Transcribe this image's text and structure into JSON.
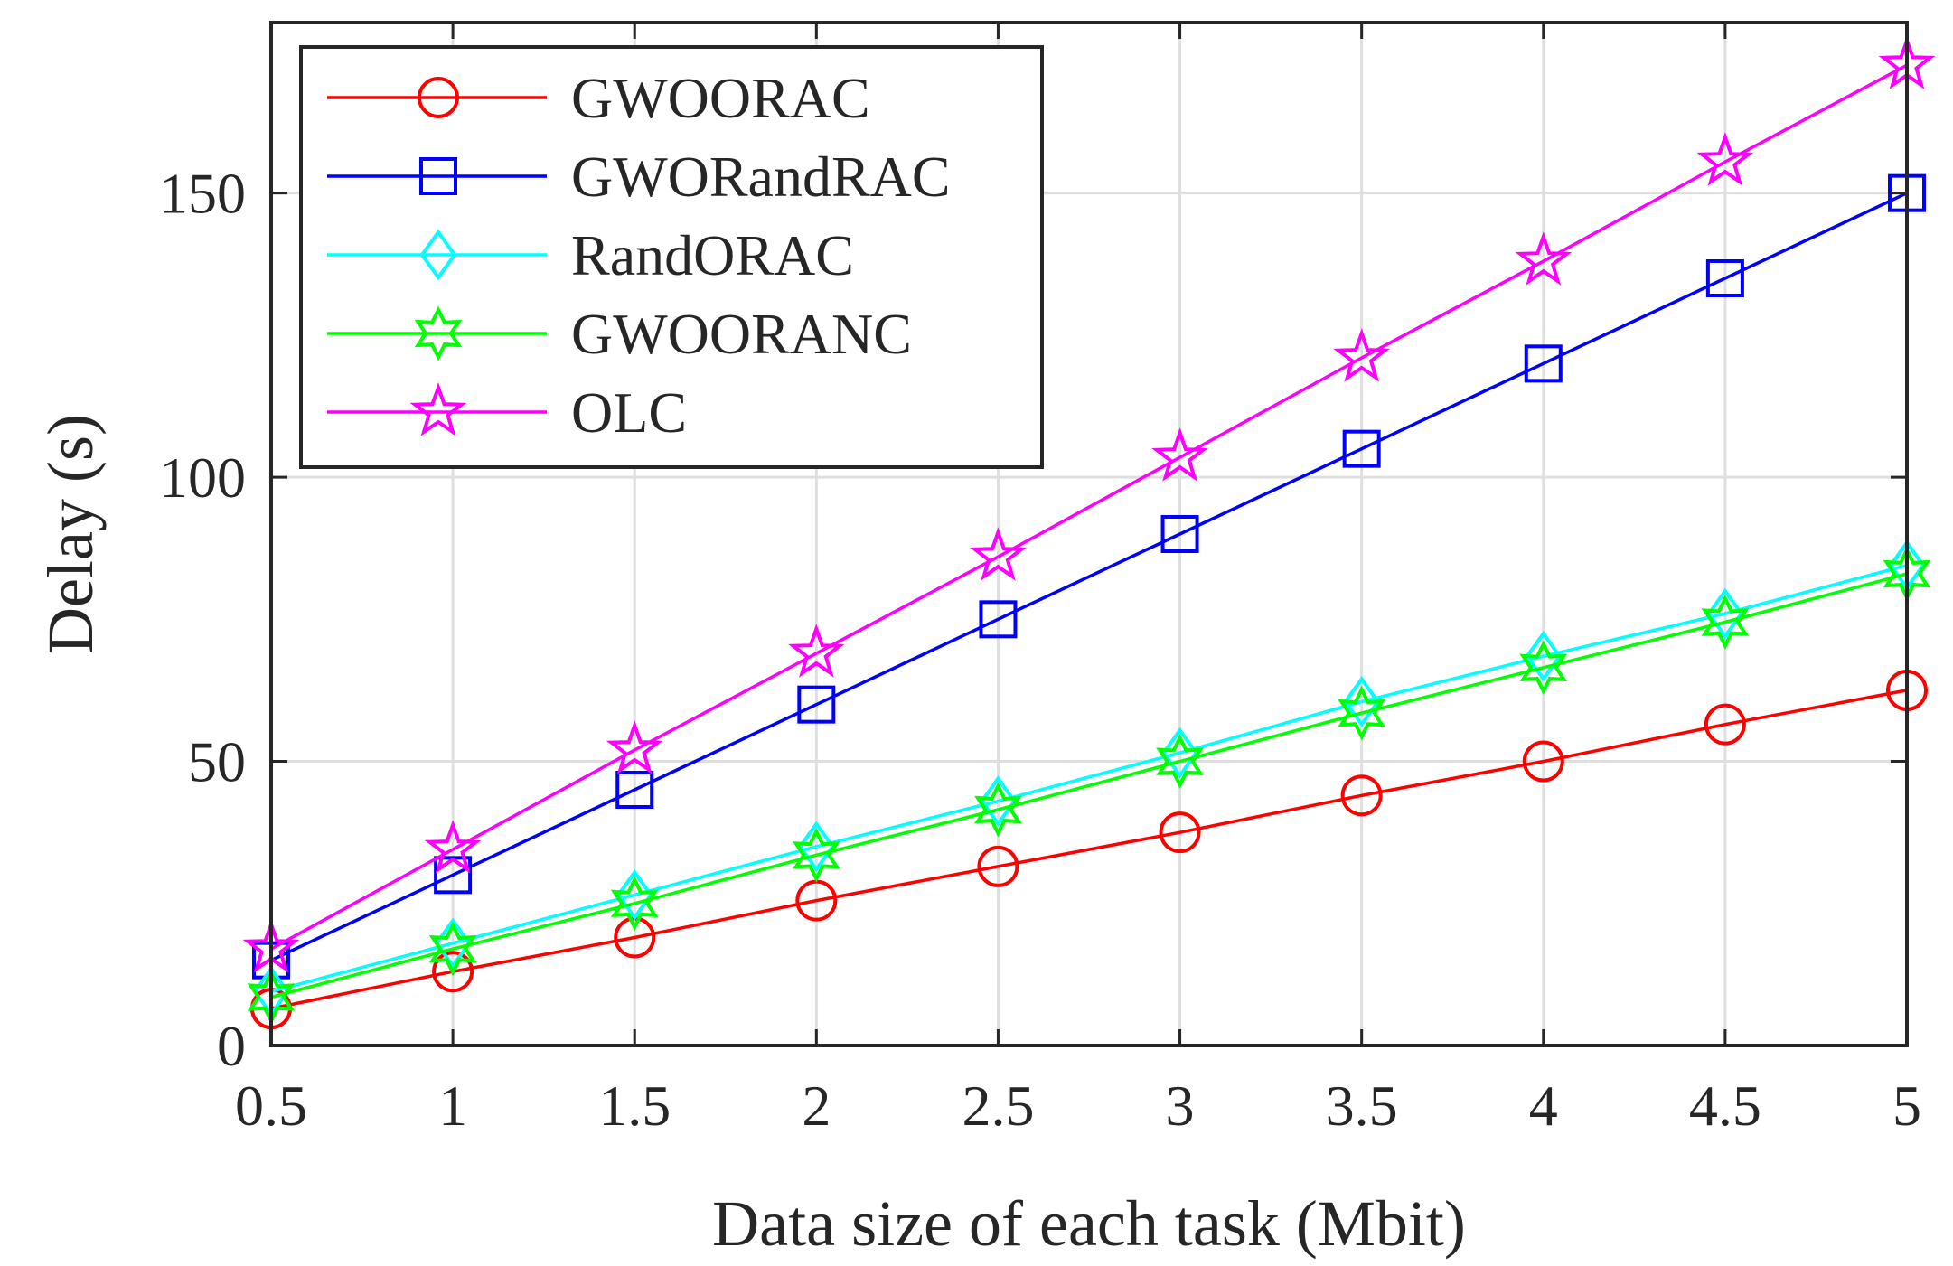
{
  "chart_data": {
    "type": "line",
    "title": "",
    "xlabel": "Data size of each task (Mbit)",
    "ylabel": "Delay (s)",
    "x": [
      0.5,
      1,
      1.5,
      2,
      2.5,
      3,
      3.5,
      4,
      4.5,
      5
    ],
    "x_tick_labels": [
      "0.5",
      "1",
      "1.5",
      "2",
      "2.5",
      "3",
      "3.5",
      "4",
      "4.5",
      "5"
    ],
    "y_ticks": [
      0,
      50,
      100,
      150
    ],
    "y_tick_labels": [
      "0",
      "50",
      "100",
      "150"
    ],
    "xlim": [
      0.5,
      5
    ],
    "ylim": [
      0,
      180
    ],
    "grid": true,
    "legend_position": "top-left",
    "series": [
      {
        "name": "GWOORAC",
        "color": "#ff0000",
        "marker": "circle",
        "values": [
          6.5,
          13,
          19,
          25.5,
          31.5,
          37.5,
          44,
          50,
          56.5,
          62.5
        ]
      },
      {
        "name": "GWORandRAC",
        "color": "#0000ff",
        "marker": "square",
        "values": [
          15,
          30,
          45,
          60,
          75,
          90,
          105,
          120,
          135,
          150
        ]
      },
      {
        "name": "RandORAC",
        "color": "#00ffff",
        "marker": "diamond",
        "values": [
          9.5,
          18,
          26.5,
          35,
          43,
          51.5,
          60.5,
          68.5,
          76,
          84.5
        ]
      },
      {
        "name": "GWOORANC",
        "color": "#00ff00",
        "marker": "hexagram",
        "values": [
          8.5,
          17,
          25,
          33.5,
          41.5,
          50,
          58.5,
          66.5,
          74.5,
          83
        ]
      },
      {
        "name": "OLC",
        "color": "#ff00ff",
        "marker": "pentagram",
        "values": [
          17,
          34.5,
          52,
          69,
          86,
          103.5,
          121,
          138,
          155.5,
          172.5
        ]
      }
    ]
  }
}
